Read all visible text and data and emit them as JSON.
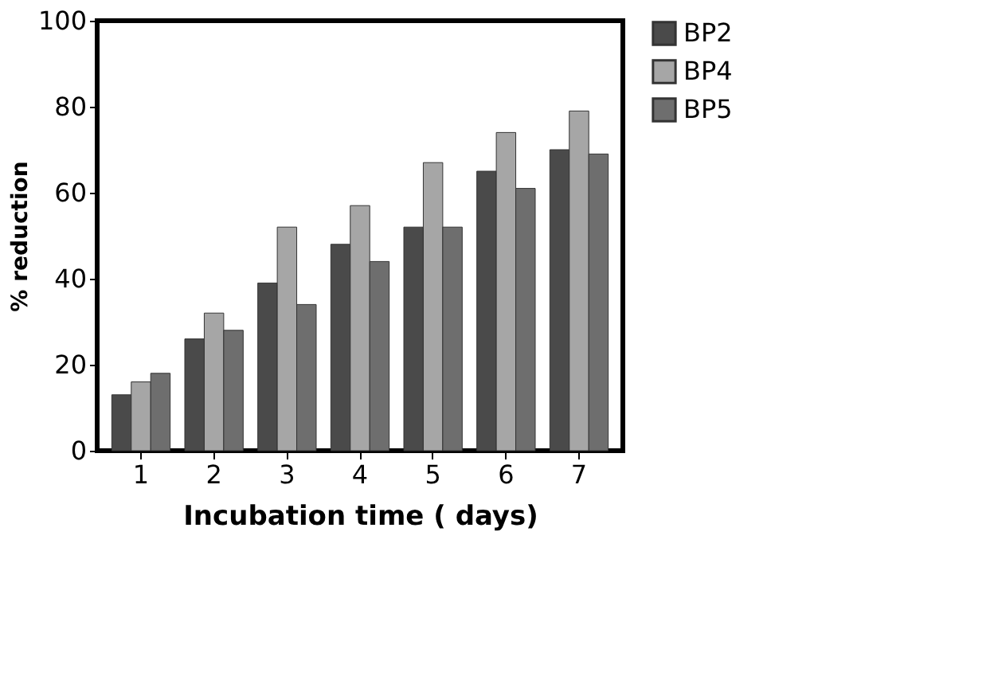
{
  "chart_data": {
    "type": "bar",
    "xlabel": "Incubation time ( days)",
    "ylabel": "% reduction",
    "categories": [
      "1",
      "2",
      "3",
      "4",
      "5",
      "6",
      "7"
    ],
    "series": [
      {
        "name": "BP2",
        "color": "#4a4a4a",
        "values": [
          13,
          26,
          39,
          48,
          52,
          65,
          70
        ]
      },
      {
        "name": "BP4",
        "color": "#a6a6a6",
        "values": [
          16,
          32,
          52,
          57,
          67,
          74,
          79
        ]
      },
      {
        "name": "BP5",
        "color": "#6e6e6e",
        "values": [
          18,
          28,
          34,
          44,
          52,
          61,
          69
        ]
      }
    ],
    "ylim": [
      0,
      100
    ],
    "yticks": [
      0,
      20,
      40,
      60,
      80,
      100
    ],
    "grid": false,
    "legend": "right"
  }
}
